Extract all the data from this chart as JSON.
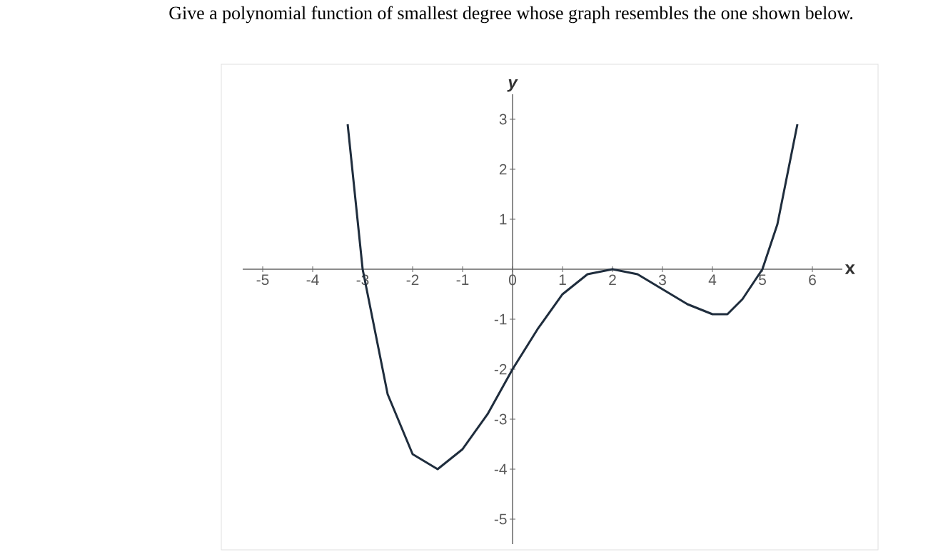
{
  "chart_data": {
    "type": "line",
    "title": "Give a polynomial function of smallest degree whose graph resembles the one shown below.",
    "xlabel": "x",
    "ylabel": "y",
    "x": [
      -3.3,
      -3,
      -2.5,
      -2,
      -1.5,
      -1,
      -0.5,
      0,
      0.5,
      1,
      1.5,
      2,
      2.5,
      3,
      3.5,
      4,
      4.3,
      4.6,
      5,
      5.3,
      5.7
    ],
    "values": [
      2.9,
      0,
      -2.5,
      -3.7,
      -4.0,
      -3.6,
      -2.9,
      -2.0,
      -1.2,
      -0.5,
      -0.1,
      0,
      -0.1,
      -0.4,
      -0.7,
      -0.9,
      -0.9,
      -0.6,
      0,
      0.9,
      2.9
    ],
    "color": "#1f2d3d",
    "xlim": [
      -5.4,
      6.6
    ],
    "ylim": [
      -5.5,
      3.5
    ],
    "xticks": [
      -5,
      -4,
      -3,
      -2,
      -1,
      0,
      1,
      2,
      3,
      4,
      5,
      6
    ],
    "yticks": [
      -5,
      -4,
      -3,
      -2,
      -1,
      1,
      2,
      3
    ]
  }
}
